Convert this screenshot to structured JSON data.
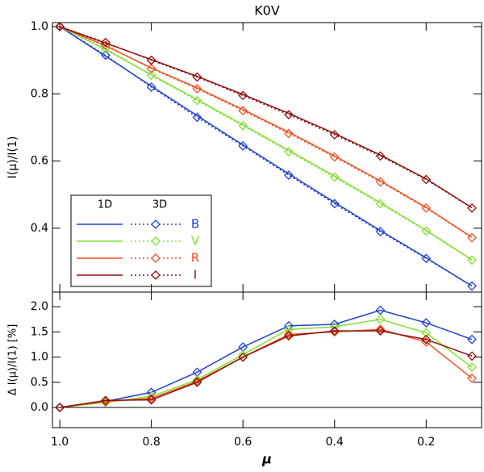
{
  "chart_data": [
    {
      "type": "line",
      "title": "K0V",
      "ylabel": "I(μ)/I(1)",
      "x": [
        1.0,
        0.9,
        0.8,
        0.7,
        0.6,
        0.5,
        0.4,
        0.3,
        0.2,
        0.1
      ],
      "xlim": [
        1.016,
        0.079
      ],
      "xticks": [
        {
          "value": 1,
          "label": "1.0"
        },
        0.8,
        0.6,
        0.4,
        0.2
      ],
      "ylim": [
        0.21,
        1.012
      ],
      "yticks": [
        {
          "value": 1,
          "label": "1.0"
        },
        0.8,
        0.6,
        0.4
      ],
      "legend_headers": [
        "1D",
        "3D"
      ],
      "series": [
        {
          "name": "B",
          "color": "#2040d0",
          "values": [
            1.0,
            0.915,
            0.82,
            0.73,
            0.645,
            0.558,
            0.473,
            0.39,
            0.31,
            0.228
          ],
          "values_1d": [
            1.0,
            0.912,
            0.823,
            0.735,
            0.648,
            0.562,
            0.477,
            0.393,
            0.312,
            0.228
          ]
        },
        {
          "name": "V",
          "color": "#80e030",
          "values": [
            1.0,
            0.935,
            0.855,
            0.78,
            0.705,
            0.628,
            0.552,
            0.473,
            0.392,
            0.305
          ],
          "values_1d": [
            1.0,
            0.932,
            0.857,
            0.783,
            0.708,
            0.632,
            0.555,
            0.476,
            0.394,
            0.306
          ]
        },
        {
          "name": "R",
          "color": "#f05020",
          "values": [
            1.0,
            0.945,
            0.875,
            0.815,
            0.75,
            0.682,
            0.612,
            0.538,
            0.46,
            0.372
          ],
          "values_1d": [
            1.0,
            0.943,
            0.877,
            0.818,
            0.753,
            0.686,
            0.615,
            0.541,
            0.462,
            0.373
          ]
        },
        {
          "name": "I",
          "color": "#901010",
          "values": [
            1.0,
            0.953,
            0.9,
            0.85,
            0.795,
            0.738,
            0.678,
            0.615,
            0.545,
            0.46
          ],
          "values_1d": [
            1.0,
            0.951,
            0.902,
            0.852,
            0.798,
            0.742,
            0.682,
            0.618,
            0.547,
            0.461
          ]
        }
      ]
    },
    {
      "type": "line",
      "xlabel": "μ",
      "ylabel": "Δ I(μ)/I(1) [%]",
      "x": [
        1.0,
        0.9,
        0.8,
        0.7,
        0.6,
        0.5,
        0.4,
        0.3,
        0.2,
        0.1
      ],
      "xlim": [
        1.016,
        0.079
      ],
      "xticks": [
        {
          "value": 1,
          "label": "1.0"
        },
        0.8,
        0.6,
        0.4,
        0.2
      ],
      "ylim": [
        -0.4,
        2.29
      ],
      "yticks": [
        {
          "value": 0,
          "label": "0.0"
        },
        0.5,
        {
          "value": 1,
          "label": "1.0"
        },
        1.5,
        {
          "value": 2,
          "label": "2.0"
        }
      ],
      "hline": 0,
      "series": [
        {
          "color": "#2040d0",
          "values": [
            0,
            0.12,
            0.3,
            0.7,
            1.2,
            1.62,
            1.65,
            1.93,
            1.68,
            1.35
          ]
        },
        {
          "color": "#80e030",
          "values": [
            0,
            0.1,
            0.22,
            0.55,
            1.05,
            1.55,
            1.6,
            1.75,
            1.48,
            0.8
          ]
        },
        {
          "color": "#f05020",
          "values": [
            0,
            0.12,
            0.18,
            0.52,
            1.0,
            1.45,
            1.5,
            1.55,
            1.3,
            0.58
          ]
        },
        {
          "color": "#901010",
          "values": [
            0,
            0.14,
            0.15,
            0.5,
            1.0,
            1.42,
            1.52,
            1.52,
            1.35,
            1.02
          ]
        }
      ]
    }
  ]
}
